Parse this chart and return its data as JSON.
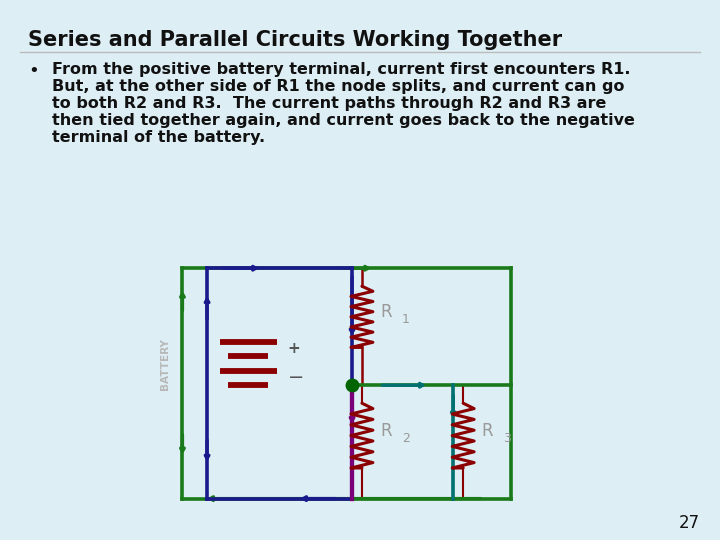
{
  "title": "Series and Parallel Circuits Working Together",
  "bullet_lines": [
    "From the positive battery terminal, current first encounters R1.",
    "But, at the other side of R1 the node splits, and current can go",
    "to both R2 and R3.  The current paths through R2 and R3 are",
    "then tied together again, and current goes back to the negative",
    "terminal of the battery."
  ],
  "bg_color": "#ddeef5",
  "white": "#ffffff",
  "title_color": "#111111",
  "text_color": "#111111",
  "green": "#1a7a1a",
  "blue": "#1a1a8c",
  "teal": "#007070",
  "purple": "#7a007a",
  "dark_red": "#8B0000",
  "node_green": "#006400",
  "gray_label": "#999999",
  "battery_label": "#aaaaaa",
  "page_num": "27"
}
